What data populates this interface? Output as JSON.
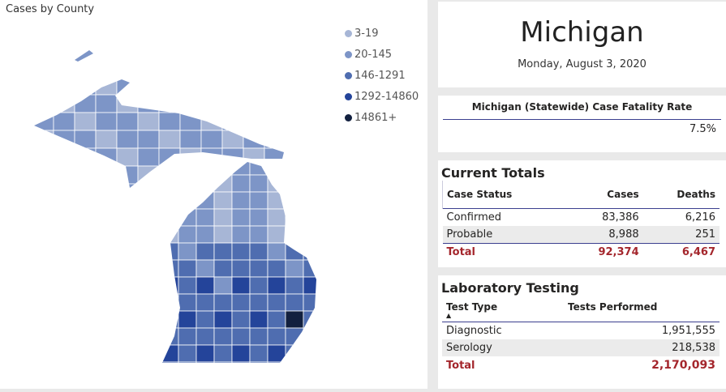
{
  "map": {
    "title": "Cases by County",
    "legend": [
      {
        "label": "3-19",
        "color": "#a7b6d6"
      },
      {
        "label": "20-145",
        "color": "#7d95c7"
      },
      {
        "label": "146-1291",
        "color": "#4f6db0"
      },
      {
        "label": "1292-14860",
        "color": "#24449a"
      },
      {
        "label": "14861+",
        "color": "#12203f"
      }
    ]
  },
  "header": {
    "state": "Michigan",
    "date": "Monday, August 3, 2020"
  },
  "cfr": {
    "title": "Michigan (Statewide) Case Fatality Rate",
    "value": "7.5%"
  },
  "totals": {
    "title": "Current Totals",
    "columns": [
      "Case Status",
      "Cases",
      "Deaths"
    ],
    "rows": [
      [
        "Confirmed",
        "83,386",
        "6,216"
      ],
      [
        "Probable",
        "8,988",
        "251"
      ]
    ],
    "total": [
      "Total",
      "92,374",
      "6,467"
    ]
  },
  "lab": {
    "title": "Laboratory Testing",
    "columns": [
      "Test Type",
      "Tests Performed"
    ],
    "rows": [
      [
        "Diagnostic",
        "1,951,555"
      ],
      [
        "Serology",
        "218,538"
      ]
    ],
    "total": [
      "Total",
      "2,170,093"
    ]
  }
}
